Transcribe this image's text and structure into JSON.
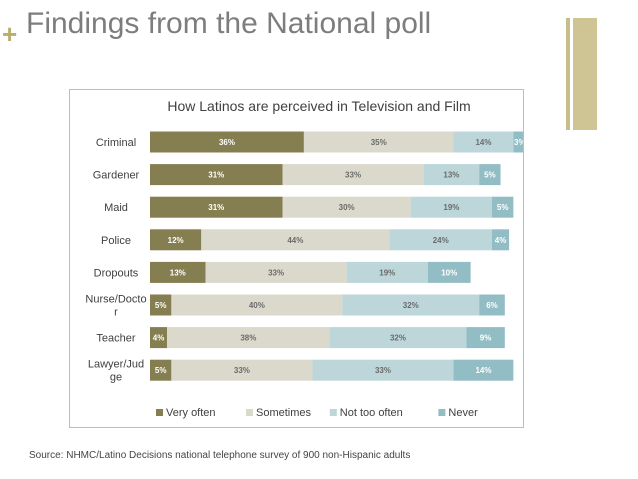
{
  "slide": {
    "title": "Findings from the National poll",
    "plus_mark": "+",
    "source": "Source: NHMC/Latino Decisions national telephone survey of 900 non-Hispanic adults"
  },
  "colors": {
    "accent": "#b9ad6b",
    "title_text": "#7d7d7d"
  },
  "chart_data": {
    "type": "bar",
    "orientation": "horizontal",
    "stacked": true,
    "title": "How Latinos are perceived in Television and Film",
    "categories": [
      "Criminal",
      "Gardener",
      "Maid",
      "Police",
      "Dropouts",
      "Nurse/Docto r",
      "Teacher",
      "Lawyer/Jud ge"
    ],
    "category_lines": [
      [
        "Criminal"
      ],
      [
        "Gardener"
      ],
      [
        "Maid"
      ],
      [
        "Police"
      ],
      [
        "Dropouts"
      ],
      [
        "Nurse/Docto",
        "r"
      ],
      [
        "Teacher"
      ],
      [
        "Lawyer/Jud",
        "ge"
      ]
    ],
    "series": [
      {
        "name": "Very often",
        "color": "#857e50",
        "label_color": "#ffffff",
        "values": [
          36,
          31,
          31,
          12,
          13,
          5,
          4,
          5
        ]
      },
      {
        "name": "Sometimes",
        "color": "#dbd9cb",
        "label_color": "#6b6b6b",
        "values": [
          35,
          33,
          30,
          44,
          33,
          40,
          38,
          33
        ]
      },
      {
        "name": "Not too often",
        "color": "#bcd6d9",
        "label_color": "#6b6b6b",
        "values": [
          14,
          13,
          19,
          24,
          19,
          32,
          32,
          33
        ]
      },
      {
        "name": "Never",
        "color": "#93bdc5",
        "label_color": "#ffffff",
        "values": [
          3,
          5,
          5,
          4,
          10,
          6,
          9,
          14
        ]
      }
    ],
    "value_suffix": "%",
    "legend_position": "bottom",
    "grid": false,
    "xlim": [
      0,
      100
    ]
  }
}
